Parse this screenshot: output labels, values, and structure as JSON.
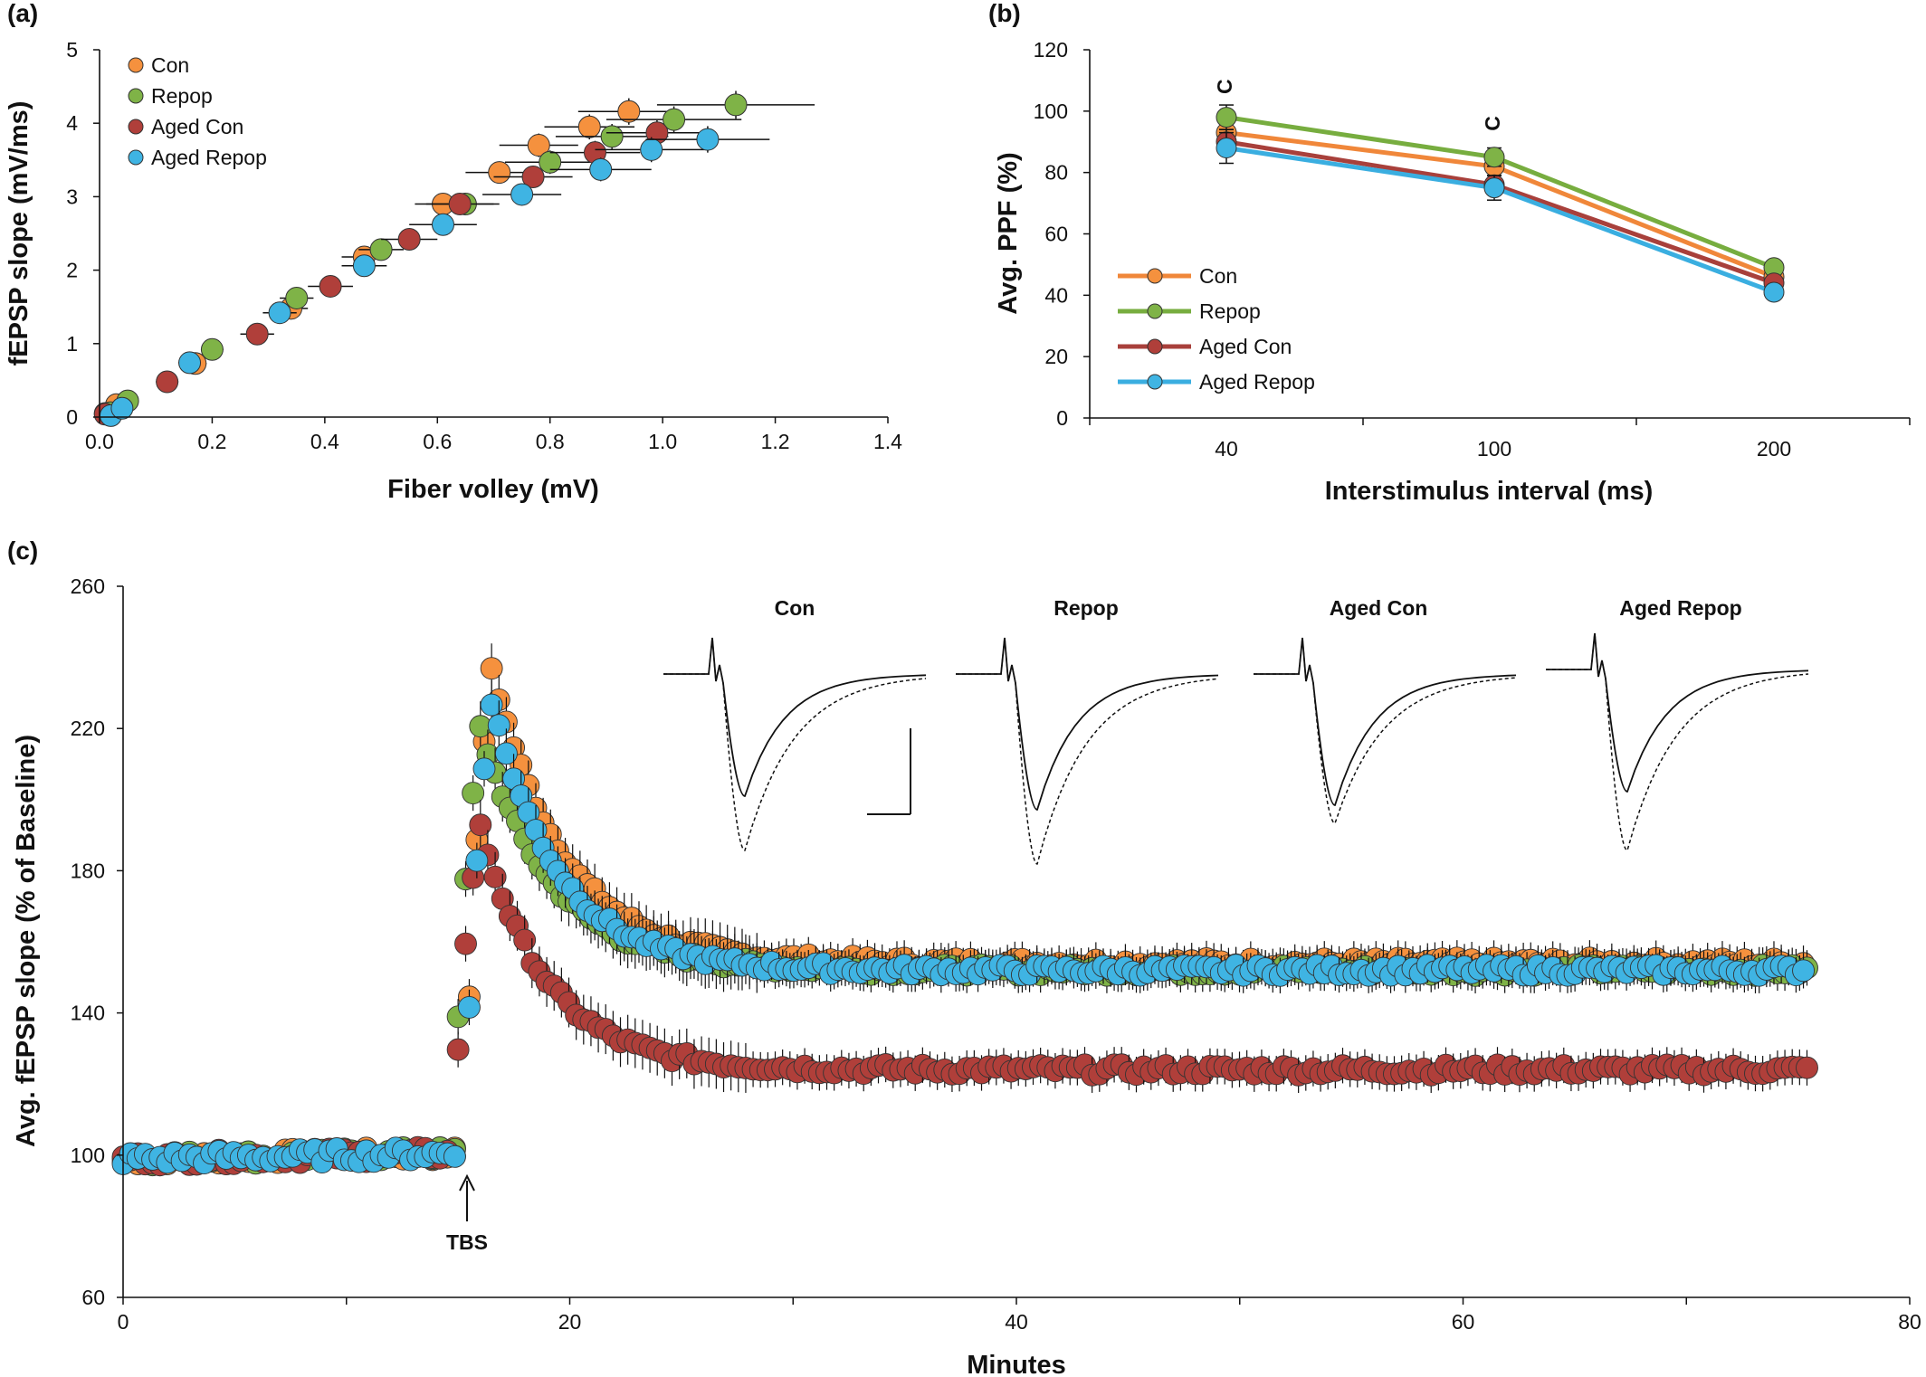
{
  "colors": {
    "Con": "#f5913e",
    "Repop": "#7fb347",
    "Aged Con": "#b03f3a",
    "Aged Repop": "#3fb4e3"
  },
  "line_colors": {
    "Con": "#f0873a",
    "Repop": "#77ad3f",
    "Aged Con": "#a8403b",
    "Aged Repop": "#3aaee0"
  },
  "chart_data": [
    {
      "panel": "(a)",
      "type": "scatter",
      "xlabel": "Fiber volley (mV)",
      "ylabel": "fEPSP slope (mV/ms)",
      "xlim": [
        0,
        1.4
      ],
      "ylim": [
        0,
        5
      ],
      "xticks": [
        "0.0",
        "0.2",
        "0.4",
        "0.6",
        "0.8",
        "1.0",
        "1.2",
        "1.4"
      ],
      "yticks": [
        "0",
        "1",
        "2",
        "3",
        "4",
        "5"
      ],
      "legend": [
        "Con",
        "Repop",
        "Aged Con",
        "Aged Repop"
      ],
      "legend_position": "top-left",
      "series": [
        {
          "name": "Con",
          "points": [
            {
              "x": 0.01,
              "y": 0.05,
              "ex": 0.01,
              "ey": 0.05
            },
            {
              "x": 0.03,
              "y": 0.17,
              "ex": 0.01,
              "ey": 0.05
            },
            {
              "x": 0.17,
              "y": 0.73,
              "ex": 0.02,
              "ey": 0.08
            },
            {
              "x": 0.34,
              "y": 1.48,
              "ex": 0.03,
              "ey": 0.1
            },
            {
              "x": 0.47,
              "y": 2.18,
              "ex": 0.04,
              "ey": 0.12
            },
            {
              "x": 0.61,
              "y": 2.9,
              "ex": 0.05,
              "ey": 0.14
            },
            {
              "x": 0.71,
              "y": 3.33,
              "ex": 0.06,
              "ey": 0.15
            },
            {
              "x": 0.78,
              "y": 3.7,
              "ex": 0.07,
              "ey": 0.16
            },
            {
              "x": 0.87,
              "y": 3.95,
              "ex": 0.08,
              "ey": 0.17
            },
            {
              "x": 0.94,
              "y": 4.16,
              "ex": 0.09,
              "ey": 0.18
            }
          ]
        },
        {
          "name": "Repop",
          "points": [
            {
              "x": 0.02,
              "y": 0.06,
              "ex": 0.01,
              "ey": 0.05
            },
            {
              "x": 0.05,
              "y": 0.22,
              "ex": 0.01,
              "ey": 0.05
            },
            {
              "x": 0.2,
              "y": 0.92,
              "ex": 0.02,
              "ey": 0.08
            },
            {
              "x": 0.35,
              "y": 1.62,
              "ex": 0.03,
              "ey": 0.1
            },
            {
              "x": 0.5,
              "y": 2.28,
              "ex": 0.04,
              "ey": 0.12
            },
            {
              "x": 0.65,
              "y": 2.9,
              "ex": 0.06,
              "ey": 0.14
            },
            {
              "x": 0.8,
              "y": 3.47,
              "ex": 0.08,
              "ey": 0.16
            },
            {
              "x": 0.91,
              "y": 3.82,
              "ex": 0.1,
              "ey": 0.17
            },
            {
              "x": 1.02,
              "y": 4.05,
              "ex": 0.12,
              "ey": 0.18
            },
            {
              "x": 1.13,
              "y": 4.25,
              "ex": 0.14,
              "ey": 0.19
            }
          ]
        },
        {
          "name": "Aged Con",
          "points": [
            {
              "x": 0.01,
              "y": 0.04,
              "ex": 0.01,
              "ey": 0.05
            },
            {
              "x": 0.12,
              "y": 0.48,
              "ex": 0.02,
              "ey": 0.07
            },
            {
              "x": 0.28,
              "y": 1.13,
              "ex": 0.03,
              "ey": 0.09
            },
            {
              "x": 0.41,
              "y": 1.78,
              "ex": 0.04,
              "ey": 0.11
            },
            {
              "x": 0.55,
              "y": 2.42,
              "ex": 0.05,
              "ey": 0.13
            },
            {
              "x": 0.64,
              "y": 2.9,
              "ex": 0.06,
              "ey": 0.14
            },
            {
              "x": 0.77,
              "y": 3.27,
              "ex": 0.07,
              "ey": 0.15
            },
            {
              "x": 0.88,
              "y": 3.6,
              "ex": 0.08,
              "ey": 0.16
            },
            {
              "x": 0.99,
              "y": 3.87,
              "ex": 0.09,
              "ey": 0.17
            }
          ]
        },
        {
          "name": "Aged Repop",
          "points": [
            {
              "x": 0.02,
              "y": 0.02,
              "ex": 0.01,
              "ey": 0.05
            },
            {
              "x": 0.04,
              "y": 0.12,
              "ex": 0.01,
              "ey": 0.05
            },
            {
              "x": 0.16,
              "y": 0.74,
              "ex": 0.02,
              "ey": 0.08
            },
            {
              "x": 0.32,
              "y": 1.42,
              "ex": 0.03,
              "ey": 0.1
            },
            {
              "x": 0.47,
              "y": 2.06,
              "ex": 0.04,
              "ey": 0.12
            },
            {
              "x": 0.61,
              "y": 2.62,
              "ex": 0.06,
              "ey": 0.14
            },
            {
              "x": 0.75,
              "y": 3.03,
              "ex": 0.07,
              "ey": 0.15
            },
            {
              "x": 0.89,
              "y": 3.37,
              "ex": 0.09,
              "ey": 0.16
            },
            {
              "x": 0.98,
              "y": 3.64,
              "ex": 0.1,
              "ey": 0.17
            },
            {
              "x": 1.08,
              "y": 3.78,
              "ex": 0.11,
              "ey": 0.18
            }
          ]
        }
      ]
    },
    {
      "panel": "(b)",
      "type": "line",
      "xlabel": "Interstimulus  interval (ms)",
      "ylabel": "Avg. PPF (%)",
      "categories": [
        "40",
        "100",
        "200"
      ],
      "ylim": [
        0,
        120
      ],
      "yticks": [
        "0",
        "20",
        "40",
        "60",
        "80",
        "100",
        "120"
      ],
      "legend": [
        "Con",
        "Repop",
        "Aged Con",
        "Aged Repop"
      ],
      "legend_position": "bottom-left",
      "annotations": [
        {
          "text": "C",
          "category": "40",
          "y": 108
        },
        {
          "text": "C",
          "category": "100",
          "y": 96
        }
      ],
      "series": [
        {
          "name": "Con",
          "values": [
            93,
            82,
            46
          ],
          "errors": [
            4,
            3,
            2
          ]
        },
        {
          "name": "Repop",
          "values": [
            98,
            85,
            49
          ],
          "errors": [
            4,
            3,
            2
          ]
        },
        {
          "name": "Aged Con",
          "values": [
            90,
            76,
            44
          ],
          "errors": [
            4,
            3,
            2
          ]
        },
        {
          "name": "Aged Repop",
          "values": [
            88,
            75,
            41
          ],
          "errors": [
            5,
            4,
            2
          ]
        }
      ]
    },
    {
      "panel": "(c)",
      "type": "scatter",
      "xlabel": "Minutes",
      "ylabel": "Avg. fEPSP slope (% of Baseline)",
      "xlim": [
        0,
        80
      ],
      "ylim": [
        60,
        260
      ],
      "xticks": [
        "0",
        "20",
        "40",
        "60",
        "80"
      ],
      "yticks": [
        "60",
        "100",
        "140",
        "180",
        "220",
        "260"
      ],
      "arrow_label": "TBS",
      "arrow_x": 15.5,
      "inset_titles": [
        "Con",
        "Repop",
        "Aged Con",
        "Aged Repop"
      ],
      "model": {
        "sample_interval_min": 0.33,
        "baseline": {
          "start": 0,
          "end": 15,
          "mean": 99
        },
        "series": [
          {
            "name": "Con",
            "peak_x": 16.5,
            "peak_y": 237,
            "plateau": 154,
            "tau_min": 3.2
          },
          {
            "name": "Repop",
            "peak_x": 16.0,
            "peak_y": 220,
            "plateau": 152,
            "tau_min": 3.2
          },
          {
            "name": "Aged Con",
            "peak_x": 16.0,
            "peak_y": 192,
            "plateau": 124,
            "tau_min": 3.0
          },
          {
            "name": "Aged Repop",
            "peak_x": 16.5,
            "peak_y": 228,
            "plateau": 152,
            "tau_min": 3.0
          }
        ],
        "end_x": 75.5
      }
    }
  ]
}
